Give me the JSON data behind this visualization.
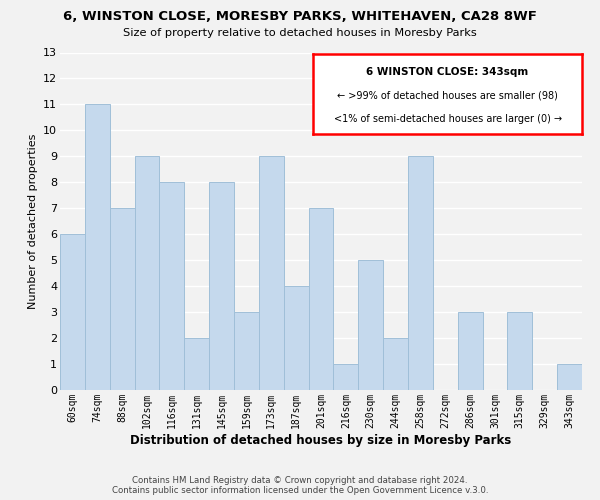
{
  "title": "6, WINSTON CLOSE, MORESBY PARKS, WHITEHAVEN, CA28 8WF",
  "subtitle": "Size of property relative to detached houses in Moresby Parks",
  "xlabel": "Distribution of detached houses by size in Moresby Parks",
  "ylabel": "Number of detached properties",
  "categories": [
    "60sqm",
    "74sqm",
    "88sqm",
    "102sqm",
    "116sqm",
    "131sqm",
    "145sqm",
    "159sqm",
    "173sqm",
    "187sqm",
    "201sqm",
    "216sqm",
    "230sqm",
    "244sqm",
    "258sqm",
    "272sqm",
    "286sqm",
    "301sqm",
    "315sqm",
    "329sqm",
    "343sqm"
  ],
  "values": [
    6,
    11,
    7,
    9,
    8,
    2,
    8,
    3,
    9,
    4,
    7,
    1,
    5,
    2,
    9,
    0,
    3,
    0,
    3,
    0,
    1
  ],
  "bar_color": "#c5d9ed",
  "bar_edge_color": "#a0bfd8",
  "ylim": [
    0,
    13
  ],
  "yticks": [
    0,
    1,
    2,
    3,
    4,
    5,
    6,
    7,
    8,
    9,
    10,
    11,
    12,
    13
  ],
  "legend_title": "6 WINSTON CLOSE: 343sqm",
  "legend_line1": "← >99% of detached houses are smaller (98)",
  "legend_line2": "<1% of semi-detached houses are larger (0) →",
  "footnote1": "Contains HM Land Registry data © Crown copyright and database right 2024.",
  "footnote2": "Contains public sector information licensed under the Open Government Licence v.3.0.",
  "grid_color": "#ffffff",
  "bg_color": "#f2f2f2"
}
